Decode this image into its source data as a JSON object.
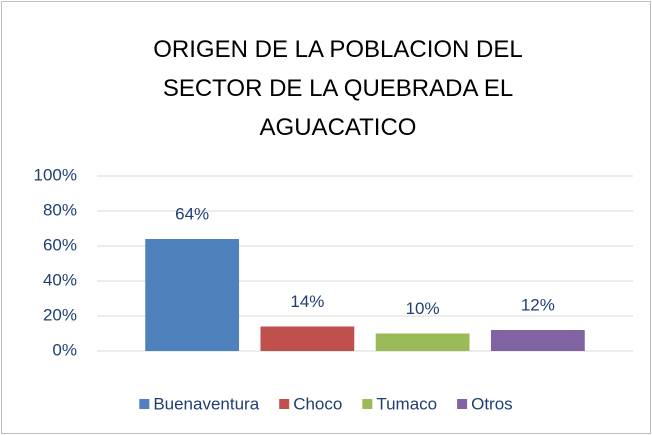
{
  "chart_data": {
    "type": "bar",
    "title": "ORIGEN DE LA POBLACION DEL SECTOR DE LA QUEBRADA EL AGUACATICO",
    "categories": [
      null
    ],
    "series": [
      {
        "name": "Buenaventura",
        "color": "#4f81bd",
        "values": [
          64
        ],
        "value_labels": [
          "64%"
        ]
      },
      {
        "name": "Choco",
        "color": "#c0504d",
        "values": [
          14
        ],
        "value_labels": [
          "14%"
        ]
      },
      {
        "name": "Tumaco",
        "color": "#9bbb59",
        "values": [
          10
        ],
        "value_labels": [
          "10%"
        ]
      },
      {
        "name": "Otros",
        "color": "#8064a2",
        "values": [
          12
        ],
        "value_labels": [
          "12%"
        ]
      }
    ],
    "ylim": [
      0,
      100
    ],
    "yticks": [
      {
        "value": 0,
        "label": "0%"
      },
      {
        "value": 20,
        "label": "20%"
      },
      {
        "value": 40,
        "label": "40%"
      },
      {
        "value": 60,
        "label": "60%"
      },
      {
        "value": 80,
        "label": "80%"
      },
      {
        "value": 100,
        "label": "100%"
      }
    ],
    "grid": true,
    "legend": "bottom"
  }
}
